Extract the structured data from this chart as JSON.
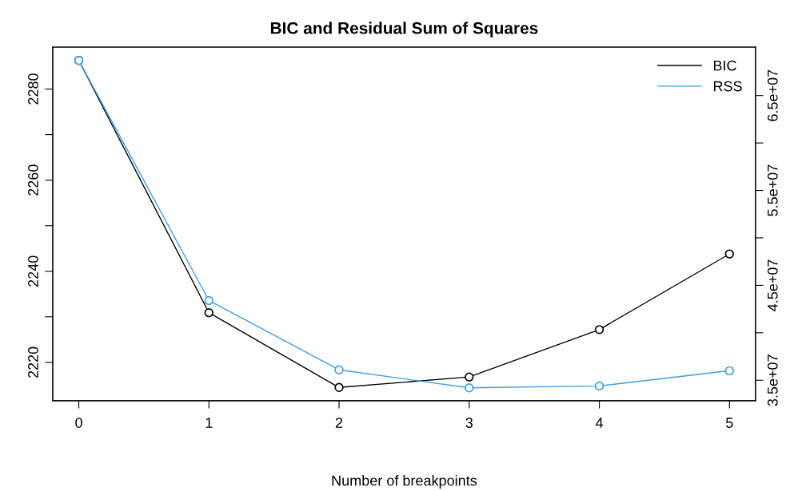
{
  "chart_data": {
    "type": "line",
    "title": "BIC and Residual Sum of Squares",
    "xlabel": "Number of breakpoints",
    "x": [
      0,
      1,
      2,
      3,
      4,
      5
    ],
    "series": [
      {
        "name": "BIC",
        "color": "#000000",
        "values": [
          2286.3,
          2230.9,
          2214.5,
          2216.8,
          2227.2,
          2243.8
        ]
      },
      {
        "name": "RSS",
        "color": "#3a9ee8",
        "axis": "y2",
        "values": [
          68700000,
          43400000,
          36100000,
          34200000,
          34400000,
          36000000
        ]
      }
    ],
    "xlim": [
      -0.2,
      5.2
    ],
    "xticks": [
      0,
      1,
      2,
      3,
      4,
      5
    ],
    "ylim": [
      2211.6,
      2289.2
    ],
    "yticks": [
      2220,
      {
        "value": 2230,
        "label": null
      },
      2240,
      {
        "value": 2250,
        "label": null
      },
      2260,
      {
        "value": 2270,
        "label": null
      },
      2280
    ],
    "y2lim": [
      32850000,
      70100000
    ],
    "y2ticks": [
      {
        "value": 35000000,
        "label": "3.5e+07"
      },
      {
        "value": 40000000,
        "label": null
      },
      {
        "value": 45000000,
        "label": "4.5e+07"
      },
      {
        "value": 50000000,
        "label": null
      },
      {
        "value": 55000000,
        "label": "5.5e+07"
      },
      {
        "value": 60000000,
        "label": null
      },
      {
        "value": 65000000,
        "label": "6.5e+07"
      }
    ],
    "marker": "circle",
    "line_style": "solid",
    "grid": false,
    "legend": "top right"
  }
}
